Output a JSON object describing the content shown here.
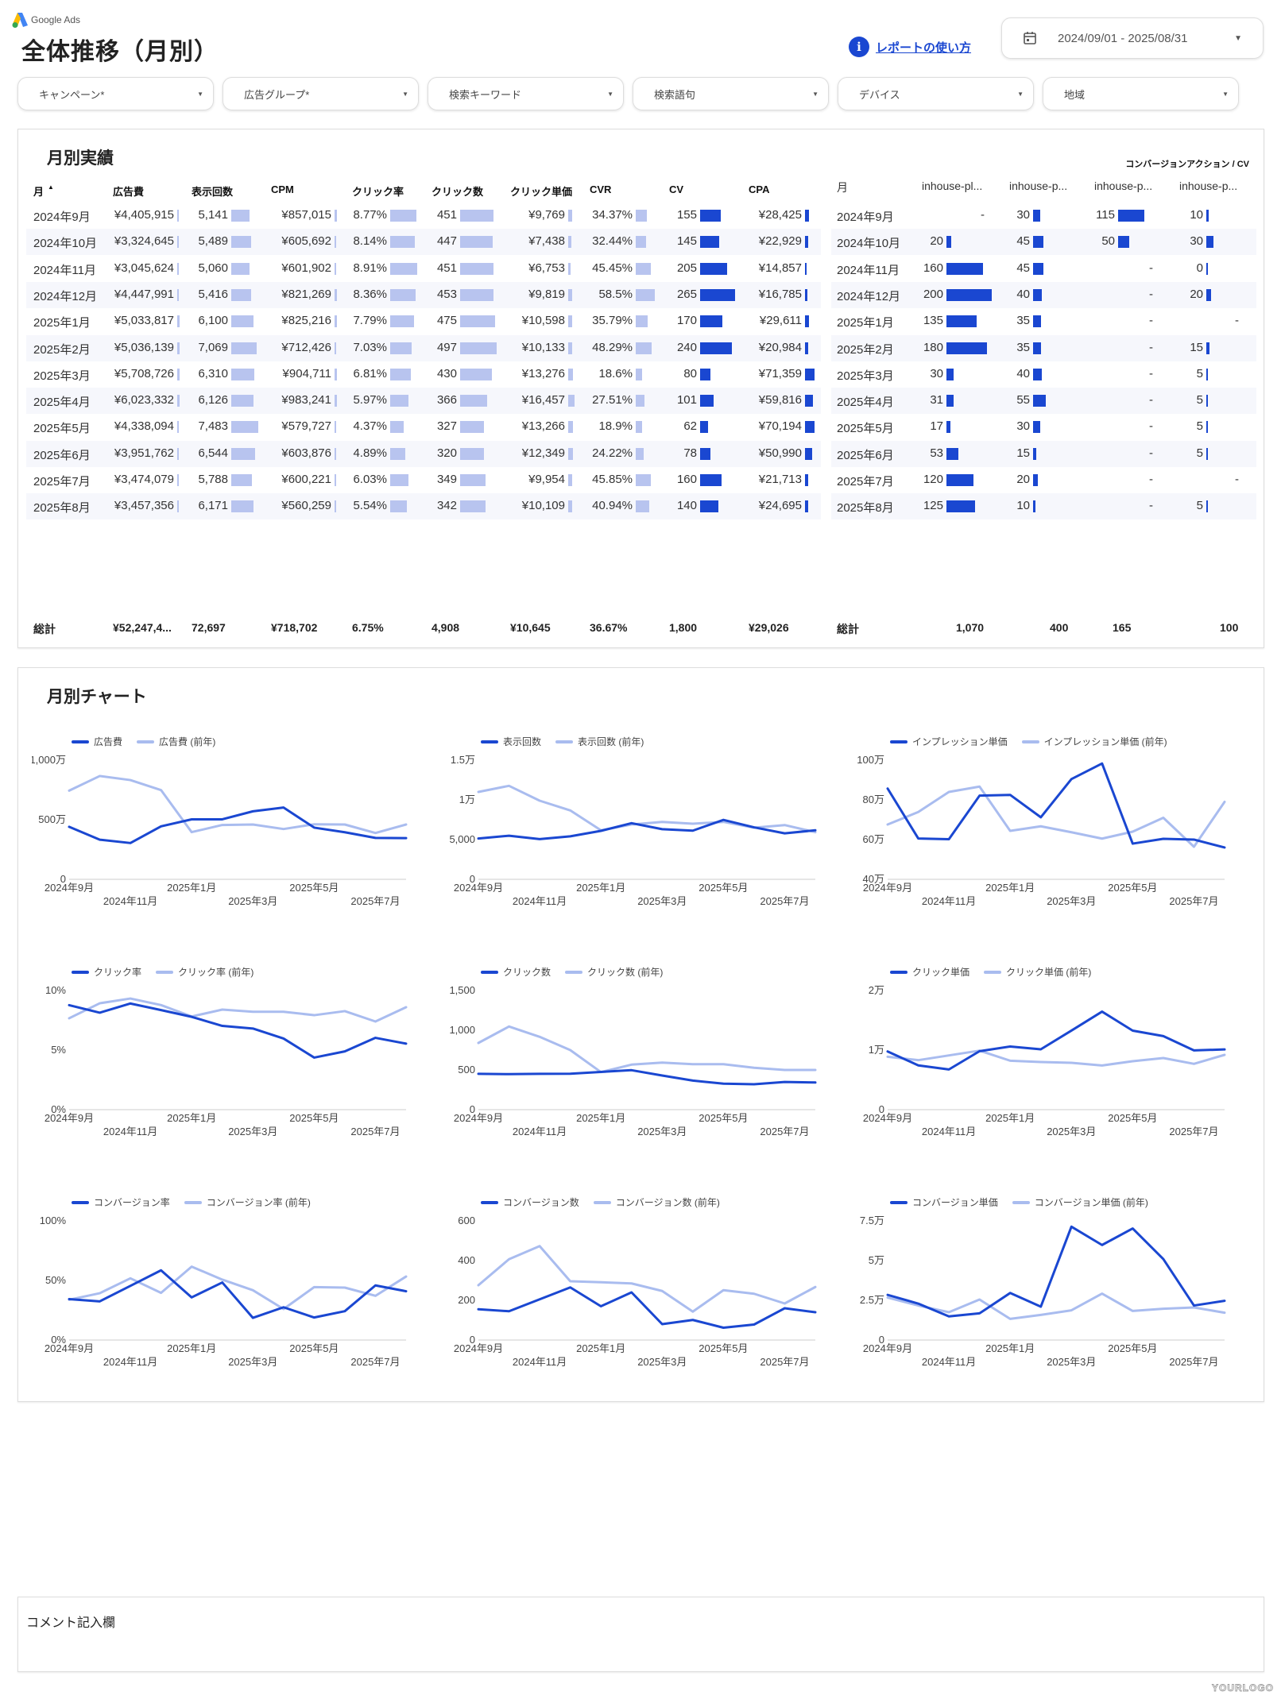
{
  "header": {
    "brand": "Google Ads",
    "title": "全体推移（月別）",
    "help_link": "レポートの使い方",
    "date_range": "2024/09/01 - 2025/08/31"
  },
  "filters": [
    {
      "label": "キャンペーン*"
    },
    {
      "label": "広告グループ*"
    },
    {
      "label": "検索キーワード"
    },
    {
      "label": "検索語句"
    },
    {
      "label": "デバイス"
    },
    {
      "label": "地域"
    }
  ],
  "colors": {
    "primary": "#1a47d1",
    "light": "#a9bcef",
    "bar_light": "#b8c4ef",
    "row_alt": "#f6f7fc"
  },
  "monthly_table": {
    "title": "月別実績",
    "sort_indicator": "▲",
    "columns": [
      "月",
      "広告費",
      "表示回数",
      "CPM",
      "クリック率",
      "クリック数",
      "クリック単価",
      "CVR",
      "CV",
      "CPA"
    ],
    "rows": [
      [
        "2024年9月",
        "¥4,405,915",
        "5,141",
        "¥857,015",
        "8.77%",
        "451",
        "¥9,769",
        "34.37%",
        "155",
        "¥28,425"
      ],
      [
        "2024年10月",
        "¥3,324,645",
        "5,489",
        "¥605,692",
        "8.14%",
        "447",
        "¥7,438",
        "32.44%",
        "145",
        "¥22,929"
      ],
      [
        "2024年11月",
        "¥3,045,624",
        "5,060",
        "¥601,902",
        "8.91%",
        "451",
        "¥6,753",
        "45.45%",
        "205",
        "¥14,857"
      ],
      [
        "2024年12月",
        "¥4,447,991",
        "5,416",
        "¥821,269",
        "8.36%",
        "453",
        "¥9,819",
        "58.5%",
        "265",
        "¥16,785"
      ],
      [
        "2025年1月",
        "¥5,033,817",
        "6,100",
        "¥825,216",
        "7.79%",
        "475",
        "¥10,598",
        "35.79%",
        "170",
        "¥29,611"
      ],
      [
        "2025年2月",
        "¥5,036,139",
        "7,069",
        "¥712,426",
        "7.03%",
        "497",
        "¥10,133",
        "48.29%",
        "240",
        "¥20,984"
      ],
      [
        "2025年3月",
        "¥5,708,726",
        "6,310",
        "¥904,711",
        "6.81%",
        "430",
        "¥13,276",
        "18.6%",
        "80",
        "¥71,359"
      ],
      [
        "2025年4月",
        "¥6,023,332",
        "6,126",
        "¥983,241",
        "5.97%",
        "366",
        "¥16,457",
        "27.51%",
        "101",
        "¥59,816"
      ],
      [
        "2025年5月",
        "¥4,338,094",
        "7,483",
        "¥579,727",
        "4.37%",
        "327",
        "¥13,266",
        "18.9%",
        "62",
        "¥70,194"
      ],
      [
        "2025年6月",
        "¥3,951,762",
        "6,544",
        "¥603,876",
        "4.89%",
        "320",
        "¥12,349",
        "24.22%",
        "78",
        "¥50,990"
      ],
      [
        "2025年7月",
        "¥3,474,079",
        "5,788",
        "¥600,221",
        "6.03%",
        "349",
        "¥9,954",
        "45.85%",
        "160",
        "¥21,713"
      ],
      [
        "2025年8月",
        "¥3,457,356",
        "6,171",
        "¥560,259",
        "5.54%",
        "342",
        "¥10,109",
        "40.94%",
        "140",
        "¥24,695"
      ]
    ],
    "totals": [
      "総計",
      "¥52,247,4...",
      "72,697",
      "¥718,702",
      "6.75%",
      "4,908",
      "¥10,645",
      "36.67%",
      "1,800",
      "¥29,026"
    ]
  },
  "conversion_table": {
    "group_header": "コンバージョンアクション / CV",
    "columns": [
      "月",
      "inhouse-pl...",
      "inhouse-p...",
      "inhouse-p...",
      "inhouse-p..."
    ],
    "rows": [
      [
        "2024年9月",
        "-",
        "30",
        "115",
        "10"
      ],
      [
        "2024年10月",
        "20",
        "45",
        "50",
        "30"
      ],
      [
        "2024年11月",
        "160",
        "45",
        "-",
        "0"
      ],
      [
        "2024年12月",
        "200",
        "40",
        "-",
        "20"
      ],
      [
        "2025年1月",
        "135",
        "35",
        "-",
        "-"
      ],
      [
        "2025年2月",
        "180",
        "35",
        "-",
        "15"
      ],
      [
        "2025年3月",
        "30",
        "40",
        "-",
        "5"
      ],
      [
        "2025年4月",
        "31",
        "55",
        "-",
        "5"
      ],
      [
        "2025年5月",
        "17",
        "30",
        "-",
        "5"
      ],
      [
        "2025年6月",
        "53",
        "15",
        "-",
        "5"
      ],
      [
        "2025年7月",
        "120",
        "20",
        "-",
        "-"
      ],
      [
        "2025年8月",
        "125",
        "10",
        "-",
        "5"
      ]
    ],
    "totals": [
      "総計",
      "1,070",
      "400",
      "165",
      "100"
    ]
  },
  "charts_section": {
    "title": "月別チャート"
  },
  "chart_data": [
    {
      "type": "line",
      "x": [
        "2024年9月",
        "2024年10月",
        "2024年11月",
        "2024年12月",
        "2025年1月",
        "2025年2月",
        "2025年3月",
        "2025年4月",
        "2025年5月",
        "2025年6月",
        "2025年7月",
        "2025年8月"
      ],
      "ylim": [
        0,
        10000000
      ],
      "yticks": [
        [
          0,
          "0"
        ],
        [
          5000000,
          "500万"
        ],
        [
          10000000,
          "1,000万"
        ]
      ],
      "grid": false,
      "legend": "top-left",
      "series": [
        {
          "name": "広告費",
          "color": "#1a47d1",
          "values": [
            4405915,
            3324645,
            3045624,
            4447991,
            5033817,
            5036139,
            5708726,
            6023332,
            4338094,
            3951762,
            3474079,
            3457356
          ]
        },
        {
          "name": "広告費 (前年)",
          "color": "#a9bcef",
          "values": [
            7440000,
            8670000,
            8330000,
            7490000,
            3960000,
            4560000,
            4600000,
            4220000,
            4620000,
            4600000,
            3890000,
            4600000
          ]
        }
      ]
    },
    {
      "type": "line",
      "x": [
        "2024年9月",
        "2024年10月",
        "2024年11月",
        "2024年12月",
        "2025年1月",
        "2025年2月",
        "2025年3月",
        "2025年4月",
        "2025年5月",
        "2025年6月",
        "2025年7月",
        "2025年8月"
      ],
      "ylim": [
        0,
        15000
      ],
      "yticks": [
        [
          0,
          "0"
        ],
        [
          5000,
          "5,000"
        ],
        [
          10000,
          "1万"
        ],
        [
          15000,
          "1.5万"
        ]
      ],
      "grid": false,
      "legend": "top-left",
      "series": [
        {
          "name": "表示回数",
          "color": "#1a47d1",
          "values": [
            5141,
            5489,
            5060,
            5416,
            6100,
            7069,
            6310,
            6126,
            7483,
            6544,
            5788,
            6171
          ]
        },
        {
          "name": "表示回数 (前年)",
          "color": "#a9bcef",
          "values": [
            11000,
            11770,
            9900,
            8670,
            6170,
            6900,
            7230,
            7000,
            7230,
            6500,
            6830,
            5930
          ]
        }
      ]
    },
    {
      "type": "line",
      "x": [
        "2024年9月",
        "2024年10月",
        "2024年11月",
        "2024年12月",
        "2025年1月",
        "2025年2月",
        "2025年3月",
        "2025年4月",
        "2025年5月",
        "2025年6月",
        "2025年7月",
        "2025年8月"
      ],
      "ylim": [
        400000,
        1000000
      ],
      "yticks": [
        [
          400000,
          "40万"
        ],
        [
          600000,
          "60万"
        ],
        [
          800000,
          "80万"
        ],
        [
          1000000,
          "100万"
        ]
      ],
      "grid": false,
      "legend": "top-left",
      "series": [
        {
          "name": "インプレッション単価",
          "color": "#1a47d1",
          "values": [
            857015,
            605692,
            601902,
            821269,
            825216,
            712426,
            904711,
            983241,
            579727,
            603876,
            600221,
            560259
          ]
        },
        {
          "name": "インプレッション単価 (前年)",
          "color": "#a9bcef",
          "values": [
            676000,
            739000,
            840000,
            867000,
            644000,
            667000,
            637000,
            605000,
            640000,
            710000,
            564000,
            790000
          ]
        }
      ]
    },
    {
      "type": "line",
      "x": [
        "2024年9月",
        "2024年10月",
        "2024年11月",
        "2024年12月",
        "2025年1月",
        "2025年2月",
        "2025年3月",
        "2025年4月",
        "2025年5月",
        "2025年6月",
        "2025年7月",
        "2025年8月"
      ],
      "ylim": [
        0,
        10
      ],
      "yticks": [
        [
          0,
          "0%"
        ],
        [
          5,
          "5%"
        ],
        [
          10,
          "10%"
        ]
      ],
      "grid": false,
      "legend": "top-left",
      "series": [
        {
          "name": "クリック率",
          "color": "#1a47d1",
          "values": [
            8.77,
            8.14,
            8.91,
            8.36,
            7.79,
            7.03,
            6.81,
            5.97,
            4.37,
            4.89,
            6.03,
            5.54
          ]
        },
        {
          "name": "クリック率 (前年)",
          "color": "#a9bcef",
          "values": [
            7.67,
            8.93,
            9.33,
            8.78,
            7.82,
            8.4,
            8.22,
            8.22,
            7.93,
            8.27,
            7.4,
            8.6
          ]
        }
      ]
    },
    {
      "type": "line",
      "x": [
        "2024年9月",
        "2024年10月",
        "2024年11月",
        "2024年12月",
        "2025年1月",
        "2025年2月",
        "2025年3月",
        "2025年4月",
        "2025年5月",
        "2025年6月",
        "2025年7月",
        "2025年8月"
      ],
      "ylim": [
        0,
        1500
      ],
      "yticks": [
        [
          0,
          "0"
        ],
        [
          500,
          "500"
        ],
        [
          1000,
          "1,000"
        ],
        [
          1500,
          "1,500"
        ]
      ],
      "grid": false,
      "legend": "top-left",
      "series": [
        {
          "name": "クリック数",
          "color": "#1a47d1",
          "values": [
            451,
            447,
            451,
            453,
            475,
            497,
            430,
            366,
            327,
            320,
            349,
            342
          ]
        },
        {
          "name": "クリック数 (前年)",
          "color": "#a9bcef",
          "values": [
            840,
            1047,
            917,
            750,
            473,
            567,
            593,
            573,
            573,
            527,
            500,
            500
          ]
        }
      ]
    },
    {
      "type": "line",
      "x": [
        "2024年9月",
        "2024年10月",
        "2024年11月",
        "2024年12月",
        "2025年1月",
        "2025年2月",
        "2025年3月",
        "2025年4月",
        "2025年5月",
        "2025年6月",
        "2025年7月",
        "2025年8月"
      ],
      "ylim": [
        0,
        20000
      ],
      "yticks": [
        [
          0,
          "0"
        ],
        [
          10000,
          "1万"
        ],
        [
          20000,
          "2万"
        ]
      ],
      "grid": false,
      "legend": "top-left",
      "series": [
        {
          "name": "クリック単価",
          "color": "#1a47d1",
          "values": [
            9769,
            7438,
            6753,
            9819,
            10598,
            10133,
            13276,
            16457,
            13266,
            12349,
            9954,
            10109
          ]
        },
        {
          "name": "クリック単価 (前年)",
          "color": "#a9bcef",
          "values": [
            8890,
            8310,
            9110,
            9910,
            8220,
            8000,
            7870,
            7420,
            8130,
            8670,
            7690,
            9200
          ]
        }
      ]
    },
    {
      "type": "line",
      "x": [
        "2024年9月",
        "2024年10月",
        "2024年11月",
        "2024年12月",
        "2025年1月",
        "2025年2月",
        "2025年3月",
        "2025年4月",
        "2025年5月",
        "2025年6月",
        "2025年7月",
        "2025年8月"
      ],
      "ylim": [
        0,
        100
      ],
      "yticks": [
        [
          0,
          "0%"
        ],
        [
          50,
          "50%"
        ],
        [
          100,
          "100%"
        ]
      ],
      "grid": false,
      "legend": "top-left",
      "series": [
        {
          "name": "コンバージョン率",
          "color": "#1a47d1",
          "values": [
            34.37,
            32.44,
            45.45,
            58.5,
            35.79,
            48.29,
            18.6,
            27.51,
            18.9,
            24.22,
            45.85,
            40.94
          ]
        },
        {
          "name": "コンバージョン率 (前年)",
          "color": "#a9bcef",
          "values": [
            33.8,
            39.3,
            51.8,
            39.6,
            61.6,
            50.7,
            41.8,
            26,
            44.4,
            44,
            37.1,
            53.3
          ]
        }
      ]
    },
    {
      "type": "line",
      "x": [
        "2024年9月",
        "2024年10月",
        "2024年11月",
        "2024年12月",
        "2025年1月",
        "2025年2月",
        "2025年3月",
        "2025年4月",
        "2025年5月",
        "2025年6月",
        "2025年7月",
        "2025年8月"
      ],
      "ylim": [
        0,
        600
      ],
      "yticks": [
        [
          0,
          "0"
        ],
        [
          200,
          "200"
        ],
        [
          400,
          "400"
        ],
        [
          600,
          "600"
        ]
      ],
      "grid": false,
      "legend": "top-left",
      "series": [
        {
          "name": "コンバージョン数",
          "color": "#1a47d1",
          "values": [
            155,
            145,
            205,
            265,
            170,
            240,
            80,
            101,
            62,
            78,
            160,
            140
          ]
        },
        {
          "name": "コンバージョン数 (前年)",
          "color": "#a9bcef",
          "values": [
            276,
            407,
            473,
            296,
            291,
            285,
            247,
            143,
            251,
            233,
            184,
            267
          ]
        }
      ]
    },
    {
      "type": "line",
      "x": [
        "2024年9月",
        "2024年10月",
        "2024年11月",
        "2024年12月",
        "2025年1月",
        "2025年2月",
        "2025年3月",
        "2025年4月",
        "2025年5月",
        "2025年6月",
        "2025年7月",
        "2025年8月"
      ],
      "ylim": [
        0,
        75000
      ],
      "yticks": [
        [
          0,
          "0"
        ],
        [
          25000,
          "2.5万"
        ],
        [
          50000,
          "5万"
        ],
        [
          75000,
          "7.5万"
        ]
      ],
      "grid": false,
      "legend": "top-left",
      "series": [
        {
          "name": "コンバージョン単価",
          "color": "#1a47d1",
          "values": [
            28425,
            22929,
            14857,
            16785,
            29611,
            20984,
            71359,
            59816,
            70194,
            50990,
            21713,
            24695
          ]
        },
        {
          "name": "コンバージョン単価 (前年)",
          "color": "#a9bcef",
          "values": [
            26700,
            21700,
            17500,
            25500,
            13300,
            15800,
            18700,
            29200,
            18300,
            19700,
            20500,
            17200
          ]
        }
      ]
    }
  ],
  "comment": {
    "label": "コメント記入欄"
  },
  "footer": {
    "logo": "YOURLOGO"
  }
}
